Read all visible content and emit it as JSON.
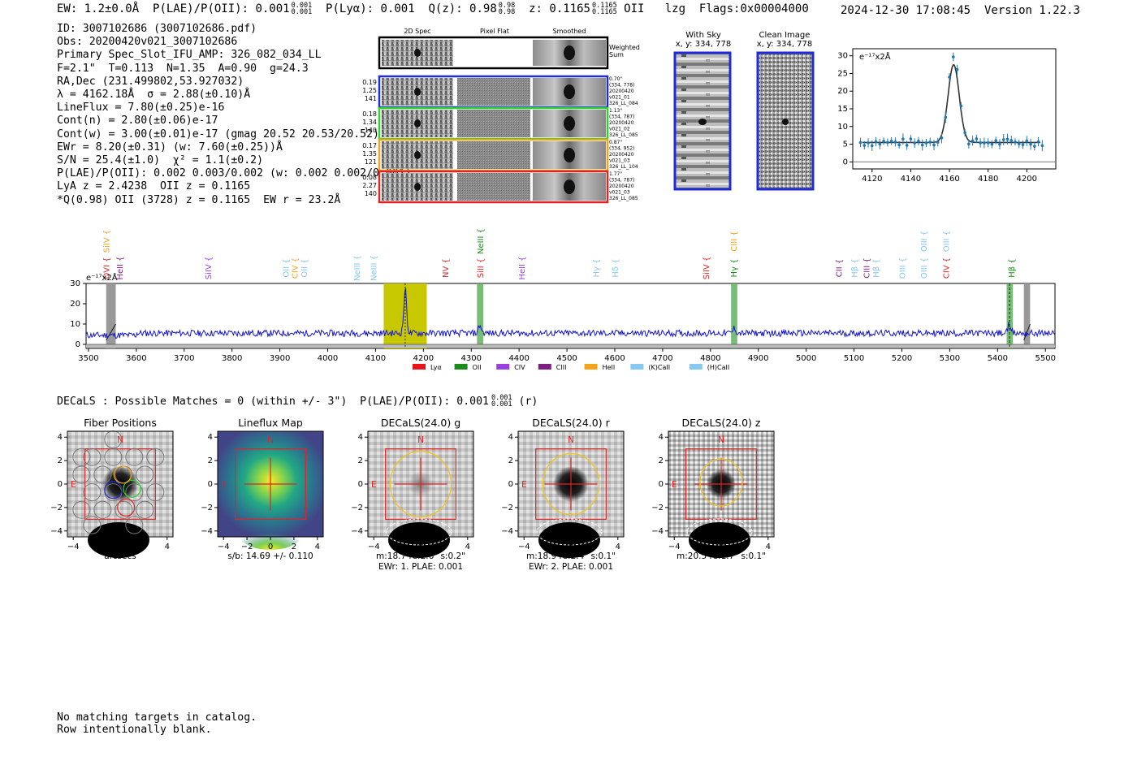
{
  "header": {
    "top_line": "EW: 1.2±0.0Å  P(LAE)/P(OII): 0.001 0.001/0.001  P(Lyα): 0.001  Q(z): 0.98 0.98/0.98  z: 0.1165 0.1165/0.1165 OII   lzg  Flags:0x00004000",
    "ew": "EW: 1.2±0.0Å",
    "plae_label": "P(LAE)/P(OII): 0.001",
    "plae_hi": "0.001",
    "plae_lo": "0.001",
    "plya": "P(Lyα): 0.001",
    "qz_label": "Q(z): 0.98",
    "qz_hi": "0.98",
    "qz_lo": "0.98",
    "z_label": "z: 0.1165",
    "z_hi": "0.1165",
    "z_lo": "0.1165",
    "z_line": "OII",
    "lzg": "lzg",
    "flags": "Flags:0x00004000",
    "datetime": "2024-12-30 17:08:45",
    "version": "Version 1.22.3"
  },
  "info_lines": [
    "ID: 3007102686 (3007102686.pdf)",
    "Obs: 20200420v021_3007102686",
    "Primary Spec_Slot_IFU_AMP: 326_082_034_LL",
    "F=2.1\"  T=0.113  N=1.35  A=0.90  g=24.3",
    "RA,Dec (231.499802,53.927032)",
    "λ = 4162.18Å  σ = 2.88(±0.10)Å",
    "LineFlux = 7.80(±0.25)e-16",
    "Cont(n) = 2.80(±0.06)e-17",
    "Cont(w) = 3.00(±0.01)e-17 (gmag 20.52 20.53/20.52)",
    "EWr = 8.20(±0.31) (w: 7.60(±0.25))Å",
    "S/N = 25.4(±1.0)  χ² = 1.1(±0.2)",
    "P(LAE)/P(OII): 0.002 0.003/0.002 (w: 0.002 0.002/0.001)",
    "LyA z = 2.4238  OII z = 0.1165",
    "*Q(0.98) OII (3728) z = 0.1165  EW r = 23.2Å"
  ],
  "spec2d": {
    "col_headers": [
      "2D Spec",
      "Pixel Flat",
      "Smoothed"
    ],
    "weighted_label": "Weighted Sum",
    "rows": [
      {
        "left": [
          "0.19",
          "1.25",
          "141"
        ],
        "right": [
          "0.70\"",
          "(334, 778)",
          "20200420",
          "v021_01",
          "326_LL_084"
        ],
        "color": "#1f2bd6"
      },
      {
        "left": [
          "0.18",
          "1.34",
          "140"
        ],
        "right": [
          "1.13\"",
          "(334, 787)",
          "20200420",
          "v021_02",
          "326_LL_085"
        ],
        "color": "#2fd22f"
      },
      {
        "left": [
          "0.17",
          "1.35",
          "121"
        ],
        "right": [
          "0.87\"",
          "(334, 952)",
          "20200420",
          "v021_03",
          "326_LL_104"
        ],
        "color": "#f2a51c"
      },
      {
        "left": [
          "0.08",
          "2.27",
          "140"
        ],
        "right": [
          "1.77\"",
          "(334, 787)",
          "20200420",
          "v021_03",
          "326_LL_085"
        ],
        "color": "#e02424"
      }
    ]
  },
  "cutouts": {
    "with_sky_title": "With Sky",
    "with_sky_xy": "x, y: 334, 778",
    "clean_title": "Clean Image",
    "clean_xy": "x, y: 334, 778"
  },
  "line_fit": {
    "ylabel": "e⁻¹⁷x2Å",
    "x_ticks": [
      "4120",
      "4140",
      "4160",
      "4180",
      "4200"
    ],
    "y_ticks": [
      "0",
      "5",
      "10",
      "15",
      "20",
      "25",
      "30"
    ]
  },
  "full_spec": {
    "ylabel": "e⁻¹⁷x2Å",
    "x_ticks": [
      "3500",
      "3600",
      "3700",
      "3800",
      "3900",
      "4000",
      "4100",
      "4200",
      "4300",
      "4400",
      "4500",
      "4600",
      "4700",
      "4800",
      "4900",
      "5000",
      "5100",
      "5200",
      "5300",
      "5400",
      "5500"
    ],
    "y_ticks": [
      "0",
      "10",
      "20",
      "30"
    ],
    "line_labels": [
      {
        "text": "SiIV",
        "color": "#f2a51c",
        "wl": 3537,
        "row": 0
      },
      {
        "text": "OVI",
        "color": "#e02424",
        "wl": 3537,
        "row": 1
      },
      {
        "text": "HeII",
        "color": "#7f1f7f",
        "wl": 3565,
        "row": 1
      },
      {
        "text": "SiIV",
        "color": "#9b3fe0",
        "wl": 3750,
        "row": 1
      },
      {
        "text": "OII",
        "color": "#87c8ee",
        "wl": 3912,
        "row": 1
      },
      {
        "text": "CIV",
        "color": "#f2a51c",
        "wl": 3930,
        "row": 1
      },
      {
        "text": "OII",
        "color": "#87c8ee",
        "wl": 3950,
        "row": 1
      },
      {
        "text": "NeIII",
        "color": "#87c8ee",
        "wl": 4060,
        "row": 1
      },
      {
        "text": "NeIII",
        "color": "#87c8ee",
        "wl": 4095,
        "row": 1
      },
      {
        "text": "NeIII",
        "color": "#1a8a1a",
        "wl": 4318,
        "row": 0
      },
      {
        "text": "NV",
        "color": "#e02424",
        "wl": 4245,
        "row": 1
      },
      {
        "text": "SiII",
        "color": "#e02424",
        "wl": 4318,
        "row": 1
      },
      {
        "text": "HeII",
        "color": "#9b3fe0",
        "wl": 4405,
        "row": 1
      },
      {
        "text": "Hγ",
        "color": "#87c8ee",
        "wl": 4560,
        "row": 1
      },
      {
        "text": "Hδ",
        "color": "#87c8ee",
        "wl": 4600,
        "row": 1
      },
      {
        "text": "SiIV",
        "color": "#e02424",
        "wl": 4790,
        "row": 1
      },
      {
        "text": "CIII",
        "color": "#f2a51c",
        "wl": 4848,
        "row": 0
      },
      {
        "text": "Hγ",
        "color": "#1a8a1a",
        "wl": 4848,
        "row": 1
      },
      {
        "text": "CII",
        "color": "#7f1f7f",
        "wl": 5068,
        "row": 1
      },
      {
        "text": "Hβ",
        "color": "#87c8ee",
        "wl": 5100,
        "row": 1
      },
      {
        "text": "CIII",
        "color": "#7f1f7f",
        "wl": 5125,
        "row": 1
      },
      {
        "text": "Hβ",
        "color": "#87c8ee",
        "wl": 5145,
        "row": 1
      },
      {
        "text": "OIII",
        "color": "#87c8ee",
        "wl": 5200,
        "row": 1
      },
      {
        "text": "OIII",
        "color": "#87c8ee",
        "wl": 5245,
        "row": 0
      },
      {
        "text": "OIII",
        "color": "#87c8ee",
        "wl": 5245,
        "row": 1
      },
      {
        "text": "OIII",
        "color": "#87c8ee",
        "wl": 5292,
        "row": 0
      },
      {
        "text": "CIV",
        "color": "#e02424",
        "wl": 5292,
        "row": 1
      },
      {
        "text": "Hβ",
        "color": "#1a8a1a",
        "wl": 5428,
        "row": 1
      }
    ],
    "legend": [
      {
        "label": "Lyα",
        "color": "#e8131b"
      },
      {
        "label": "OII",
        "color": "#1a8a1a"
      },
      {
        "label": "CIV",
        "color": "#9b3fe0"
      },
      {
        "label": "CIII",
        "color": "#7f1f7f"
      },
      {
        "label": "HeII",
        "color": "#f2a51c"
      },
      {
        "label": "(K)CaII",
        "color": "#87c8ee"
      },
      {
        "label": "(H)CaII",
        "color": "#87c8ee"
      }
    ]
  },
  "decals": {
    "line_main": "DECaLS : Possible Matches = 0 (within +/- 3\")  P(LAE)/P(OII): 0.001",
    "line_hi": "0.001",
    "line_lo": "0.001",
    "line_suffix": "(r)",
    "panels": [
      {
        "title": "Fiber Positions",
        "cap1": "arcsecs",
        "cap2": ""
      },
      {
        "title": "Lineflux Map",
        "cap1": "s/b: 14.69 +/- 0.110",
        "cap2": ""
      },
      {
        "title": "DECaLS(24.0) g",
        "cap1": "m:18.7  re:2.6\"  s:0.2\"",
        "cap2": "EWr: 1. PLAE: 0.001"
      },
      {
        "title": "DECaLS(24.0) r",
        "cap1": "m:18.9  re:2.4\"  s:0.1\"",
        "cap2": "EWr: 2. PLAE: 0.001"
      },
      {
        "title": "DECaLS(24.0) z",
        "cap1": "m:20.5  re:1.7\"  s:0.1\"",
        "cap2": ""
      }
    ],
    "axis_ticks": [
      "−4",
      "−2",
      "0",
      "2",
      "4"
    ],
    "n_label": "N",
    "e_label": "E"
  },
  "bottom": {
    "line1": "No matching targets in catalog.",
    "line2": "Row intentionally blank."
  }
}
